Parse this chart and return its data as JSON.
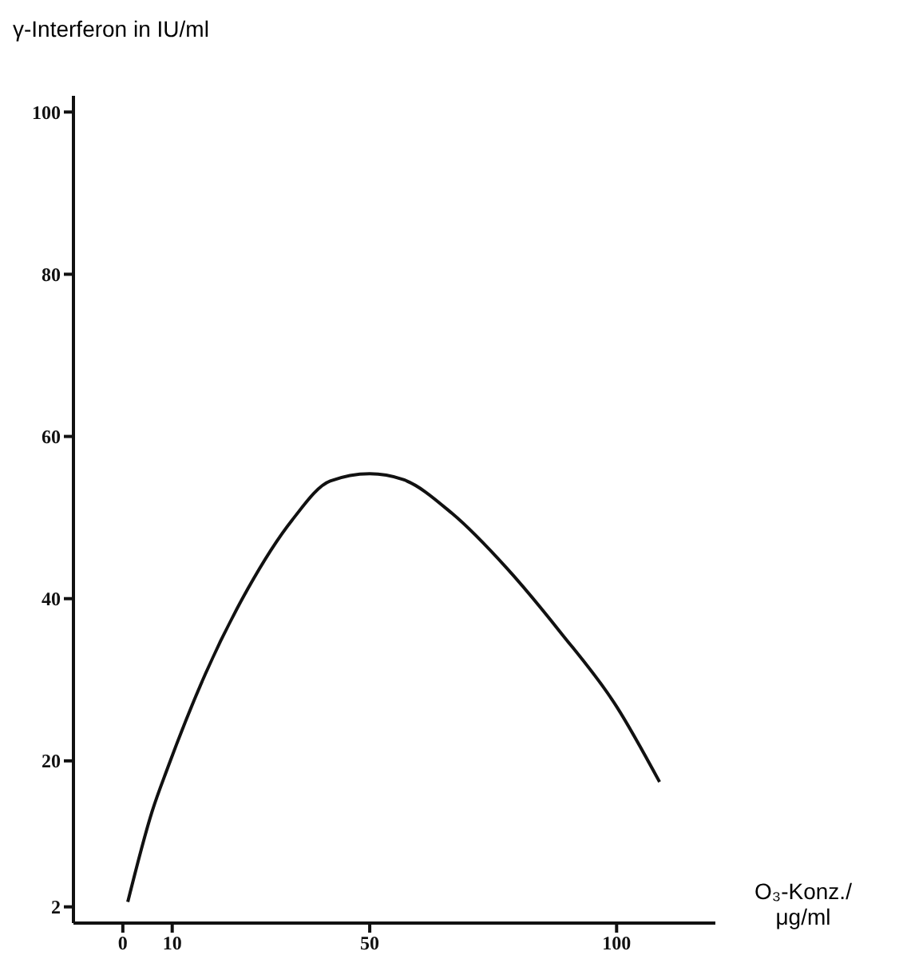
{
  "chart_data": {
    "type": "line",
    "ylabel": "γ-Interferon in IU/ml",
    "xlabel": "O₃-Konz./ μg/ml",
    "series": [
      {
        "color": "#111111",
        "x": [
          1,
          6,
          9,
          16.7,
          25.3,
          34.3,
          42,
          50,
          56.7,
          66.7,
          77.7,
          88.7,
          100,
          108.7
        ],
        "values": [
          2.6,
          13.9,
          19,
          30.7,
          41.2,
          49.7,
          54.5,
          55.4,
          54.7,
          50.5,
          43.8,
          35.8,
          26.7,
          17.4
        ]
      }
    ],
    "xlim": [
      -10,
      120
    ],
    "xticks": [
      0,
      10,
      50,
      100
    ],
    "ylim": [
      0,
      102
    ],
    "yticks": [
      2,
      20,
      40,
      60,
      80,
      100
    ],
    "grid": false,
    "marker": "none",
    "line_style": "solid"
  }
}
